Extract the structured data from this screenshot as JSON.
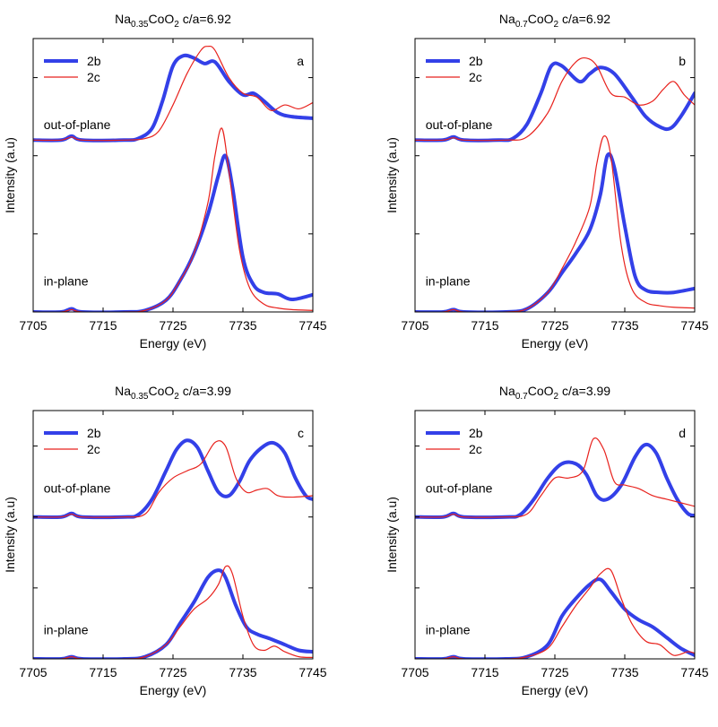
{
  "figure": {
    "colors": {
      "2b": "#3340e8",
      "2c": "#e8221d",
      "axis": "#000000"
    }
  },
  "chart_data": [
    {
      "panel": "a",
      "type": "line",
      "title": {
        "base": "Na",
        "sub1": "0.35",
        "mid": "CoO",
        "sub2": "2",
        "tail": " c/a=6.92"
      },
      "xlabel": "Energy (eV)",
      "ylabel": "Intensity (a.u)",
      "xlim": [
        7705,
        7745
      ],
      "ylim": [
        0,
        3.5
      ],
      "xticks": [
        7705,
        7715,
        7725,
        7735,
        7745
      ],
      "legend": {
        "position": "top-left",
        "entries": [
          "2b",
          "2c"
        ]
      },
      "annotations": [
        {
          "text": "out-of-plane",
          "x": 7706.5,
          "y": 2.27
        },
        {
          "text": "in-plane",
          "x": 7706.5,
          "y": 0.27
        }
      ],
      "series": [
        {
          "name": "2b",
          "group": "out-of-plane",
          "offset": 2.2,
          "x": [
            7705,
            7709,
            7710.5,
            7712,
            7718,
            7720,
            7722,
            7723.5,
            7725,
            7726.5,
            7728,
            7729.5,
            7731,
            7733,
            7735,
            7736.5,
            7738,
            7740,
            7742,
            7745
          ],
          "y": [
            0,
            0,
            0.05,
            0,
            0,
            0.02,
            0.15,
            0.5,
            0.95,
            1.08,
            1.05,
            0.98,
            1.0,
            0.75,
            0.58,
            0.6,
            0.5,
            0.35,
            0.3,
            0.28
          ]
        },
        {
          "name": "2c",
          "group": "out-of-plane",
          "offset": 2.2,
          "x": [
            7705,
            7709,
            7710.5,
            7712,
            7718,
            7721,
            7723,
            7725,
            7727,
            7729,
            7730,
            7731,
            7733,
            7735,
            7737,
            7739,
            7741,
            7743,
            7745
          ],
          "y": [
            0,
            0,
            0.04,
            0,
            0,
            0.02,
            0.12,
            0.45,
            0.85,
            1.15,
            1.2,
            1.15,
            0.8,
            0.6,
            0.55,
            0.38,
            0.45,
            0.4,
            0.48
          ]
        },
        {
          "name": "2b",
          "group": "in-plane",
          "offset": 0,
          "x": [
            7705,
            7709,
            7710.5,
            7712,
            7718,
            7721,
            7724,
            7726,
            7728,
            7730,
            7731.5,
            7732.5,
            7733.5,
            7735,
            7736.5,
            7738,
            7740,
            7742,
            7745
          ],
          "y": [
            0,
            0,
            0.04,
            0,
            0,
            0.02,
            0.15,
            0.4,
            0.75,
            1.25,
            1.75,
            2.0,
            1.6,
            0.7,
            0.35,
            0.25,
            0.23,
            0.16,
            0.22
          ]
        },
        {
          "name": "2c",
          "group": "in-plane",
          "offset": 0,
          "x": [
            7705,
            7709,
            7710.5,
            7712,
            7718,
            7721,
            7724,
            7726,
            7728,
            7730,
            7731,
            7732,
            7733,
            7734.5,
            7736,
            7738,
            7740,
            7742,
            7745
          ],
          "y": [
            0,
            0,
            0.03,
            0,
            0,
            0.02,
            0.15,
            0.4,
            0.75,
            1.4,
            2.0,
            2.35,
            1.8,
            0.8,
            0.3,
            0.1,
            0.05,
            0.03,
            0.02
          ]
        }
      ]
    },
    {
      "panel": "b",
      "type": "line",
      "title": {
        "base": "Na",
        "sub1": "0.7",
        "mid": "CoO",
        "sub2": "2",
        "tail": " c/a=6.92"
      },
      "xlabel": "Energy (eV)",
      "ylabel": "Intensity (a.u)",
      "xlim": [
        7705,
        7745
      ],
      "ylim": [
        0,
        3.5
      ],
      "xticks": [
        7705,
        7715,
        7725,
        7735,
        7745
      ],
      "legend": {
        "position": "top-left",
        "entries": [
          "2b",
          "2c"
        ]
      },
      "annotations": [
        {
          "text": "out-of-plane",
          "x": 7706.5,
          "y": 2.27
        },
        {
          "text": "in-plane",
          "x": 7706.5,
          "y": 0.27
        }
      ],
      "series": [
        {
          "name": "2b",
          "group": "out-of-plane",
          "offset": 2.2,
          "x": [
            7705,
            7709,
            7710.5,
            7712,
            7717,
            7719,
            7721,
            7723,
            7724.5,
            7726,
            7728.5,
            7730,
            7731.5,
            7733.5,
            7736,
            7738,
            7740,
            7741.5,
            7743,
            7745
          ],
          "y": [
            0,
            0,
            0.04,
            0,
            0,
            0.02,
            0.2,
            0.6,
            0.95,
            0.95,
            0.75,
            0.85,
            0.93,
            0.85,
            0.55,
            0.3,
            0.17,
            0.15,
            0.3,
            0.6
          ]
        },
        {
          "name": "2c",
          "group": "out-of-plane",
          "offset": 2.2,
          "x": [
            7705,
            7709,
            7710.5,
            7712,
            7718,
            7721,
            7724,
            7726,
            7728,
            7729.5,
            7731,
            7733,
            7735,
            7737,
            7739,
            7740.5,
            7742,
            7743.5,
            7745
          ],
          "y": [
            0,
            0,
            0.03,
            0,
            0,
            0.04,
            0.35,
            0.75,
            1.0,
            1.05,
            0.95,
            0.6,
            0.55,
            0.45,
            0.5,
            0.65,
            0.75,
            0.58,
            0.45
          ]
        },
        {
          "name": "2b",
          "group": "in-plane",
          "offset": 0,
          "x": [
            7705,
            7709,
            7710.5,
            7712,
            7718,
            7721,
            7724,
            7726,
            7728,
            7730,
            7731.5,
            7732.5,
            7733.5,
            7735,
            7736.5,
            7738,
            7740,
            7742,
            7745
          ],
          "y": [
            0,
            0,
            0.03,
            0,
            0,
            0.04,
            0.25,
            0.5,
            0.75,
            1.05,
            1.5,
            2.0,
            1.85,
            1.1,
            0.45,
            0.28,
            0.25,
            0.25,
            0.3
          ]
        },
        {
          "name": "2c",
          "group": "in-plane",
          "offset": 0,
          "x": [
            7705,
            7709,
            7710.5,
            7712,
            7718,
            7721,
            7724,
            7726,
            7728,
            7730,
            7731,
            7732,
            7733,
            7734.5,
            7736,
            7738,
            7740,
            7742,
            7745
          ],
          "y": [
            0,
            0,
            0.03,
            0,
            0,
            0.04,
            0.25,
            0.55,
            0.9,
            1.35,
            1.9,
            2.25,
            2.0,
            0.85,
            0.3,
            0.12,
            0.08,
            0.06,
            0.05
          ]
        }
      ]
    },
    {
      "panel": "c",
      "type": "line",
      "title": {
        "base": "Na",
        "sub1": "0.35",
        "mid": "CoO",
        "sub2": "2",
        "tail": " c/a=3.99"
      },
      "xlabel": "Energy (eV)",
      "ylabel": "Intensity (a.u)",
      "xlim": [
        7705,
        7745
      ],
      "ylim": [
        0,
        3.5
      ],
      "xticks": [
        7705,
        7715,
        7725,
        7735,
        7745
      ],
      "legend": {
        "position": "top-left",
        "entries": [
          "2b",
          "2c"
        ]
      },
      "annotations": [
        {
          "text": "out-of-plane",
          "x": 7706.5,
          "y": 2.27
        },
        {
          "text": "in-plane",
          "x": 7706.5,
          "y": 0.27
        }
      ],
      "series": [
        {
          "name": "2b",
          "group": "out-of-plane",
          "offset": 2.0,
          "x": [
            7705,
            7709,
            7710.5,
            7712,
            7718,
            7720,
            7722,
            7724,
            7725.5,
            7727,
            7728.5,
            7730,
            7731.5,
            7733,
            7734.5,
            7736,
            7738,
            7739.5,
            7741,
            7742.5,
            7744,
            7745
          ],
          "y": [
            0,
            0,
            0.05,
            0,
            0,
            0.03,
            0.25,
            0.65,
            0.95,
            1.08,
            0.98,
            0.65,
            0.35,
            0.3,
            0.5,
            0.8,
            1.0,
            1.04,
            0.9,
            0.55,
            0.3,
            0.25
          ]
        },
        {
          "name": "2c",
          "group": "out-of-plane",
          "offset": 2.0,
          "x": [
            7705,
            7709,
            7710.5,
            7712,
            7718,
            7721,
            7723,
            7725,
            7727,
            7729,
            7731,
            7732.5,
            7734,
            7735.5,
            7737,
            7738.5,
            7740,
            7742,
            7745
          ],
          "y": [
            0,
            0,
            0.04,
            0,
            0,
            0.04,
            0.35,
            0.55,
            0.65,
            0.75,
            1.05,
            1.0,
            0.55,
            0.35,
            0.38,
            0.4,
            0.3,
            0.28,
            0.3
          ]
        },
        {
          "name": "2b",
          "group": "in-plane",
          "offset": 0,
          "x": [
            7705,
            7709,
            7710.5,
            7712,
            7718,
            7721,
            7724,
            7726,
            7728,
            7730,
            7731.5,
            7732.5,
            7734,
            7735.5,
            7737,
            7739,
            7741,
            7743,
            7745
          ],
          "y": [
            0,
            0,
            0.03,
            0,
            0,
            0.03,
            0.2,
            0.5,
            0.8,
            1.15,
            1.25,
            1.15,
            0.75,
            0.45,
            0.35,
            0.28,
            0.2,
            0.12,
            0.1
          ]
        },
        {
          "name": "2c",
          "group": "in-plane",
          "offset": 0,
          "x": [
            7705,
            7709,
            7710.5,
            7712,
            7718,
            7721,
            7724,
            7726,
            7728,
            7730,
            7731.5,
            7732.5,
            7733.5,
            7735,
            7736.5,
            7738,
            7739.5,
            7741,
            7743,
            7745
          ],
          "y": [
            0,
            0,
            0.03,
            0,
            0,
            0.03,
            0.2,
            0.45,
            0.7,
            0.85,
            1.05,
            1.3,
            1.2,
            0.6,
            0.2,
            0.12,
            0.18,
            0.1,
            0.03,
            0.02
          ]
        }
      ]
    },
    {
      "panel": "d",
      "type": "line",
      "title": {
        "base": "Na",
        "sub1": "0.7",
        "mid": "CoO",
        "sub2": "2",
        "tail": " c/a=3.99"
      },
      "xlabel": "Energy (eV)",
      "ylabel": "Intensity (a.u)",
      "xlim": [
        7705,
        7745
      ],
      "ylim": [
        0,
        3.5
      ],
      "xticks": [
        7705,
        7715,
        7725,
        7735,
        7745
      ],
      "legend": {
        "position": "top-left",
        "entries": [
          "2b",
          "2c"
        ]
      },
      "annotations": [
        {
          "text": "out-of-plane",
          "x": 7706.5,
          "y": 2.27
        },
        {
          "text": "in-plane",
          "x": 7706.5,
          "y": 0.27
        }
      ],
      "series": [
        {
          "name": "2b",
          "group": "out-of-plane",
          "offset": 2.0,
          "x": [
            7705,
            7709,
            7710.5,
            7712,
            7718,
            7720,
            7722,
            7724,
            7726,
            7728,
            7729.5,
            7731,
            7732.5,
            7734.5,
            7736.5,
            7738,
            7739.5,
            7741,
            7742.5,
            7744,
            7745
          ],
          "y": [
            0,
            0,
            0.05,
            0,
            0,
            0.03,
            0.25,
            0.55,
            0.75,
            0.75,
            0.6,
            0.3,
            0.25,
            0.45,
            0.85,
            1.02,
            0.9,
            0.55,
            0.25,
            0.05,
            0.02
          ]
        },
        {
          "name": "2c",
          "group": "out-of-plane",
          "offset": 2.0,
          "x": [
            7705,
            7709,
            7710.5,
            7712,
            7718,
            7721,
            7723,
            7725,
            7727,
            7729,
            7730.5,
            7732,
            7733.5,
            7735,
            7737,
            7739,
            7741,
            7743,
            7745
          ],
          "y": [
            0,
            0,
            0.04,
            0,
            0,
            0.04,
            0.3,
            0.55,
            0.55,
            0.65,
            1.1,
            0.95,
            0.5,
            0.45,
            0.4,
            0.3,
            0.25,
            0.2,
            0.15
          ]
        },
        {
          "name": "2b",
          "group": "in-plane",
          "offset": 0,
          "x": [
            7705,
            7709,
            7710.5,
            7712,
            7718,
            7721,
            7724,
            7726,
            7728,
            7730,
            7731.5,
            7733,
            7735,
            7737,
            7739,
            7741,
            7743,
            7745
          ],
          "y": [
            0,
            0,
            0.03,
            0,
            0,
            0.03,
            0.2,
            0.6,
            0.85,
            1.05,
            1.12,
            0.95,
            0.7,
            0.55,
            0.45,
            0.3,
            0.15,
            0.05
          ]
        },
        {
          "name": "2c",
          "group": "in-plane",
          "offset": 0,
          "x": [
            7705,
            7709,
            7710.5,
            7712,
            7718,
            7721,
            7724,
            7726,
            7728,
            7730,
            7731.5,
            7733,
            7734.5,
            7736,
            7738,
            7740,
            7742,
            7744,
            7745
          ],
          "y": [
            0,
            0,
            0.03,
            0,
            0,
            0.03,
            0.15,
            0.45,
            0.75,
            1.0,
            1.2,
            1.25,
            0.85,
            0.5,
            0.25,
            0.2,
            0.05,
            0.1,
            0.08
          ]
        }
      ]
    }
  ]
}
